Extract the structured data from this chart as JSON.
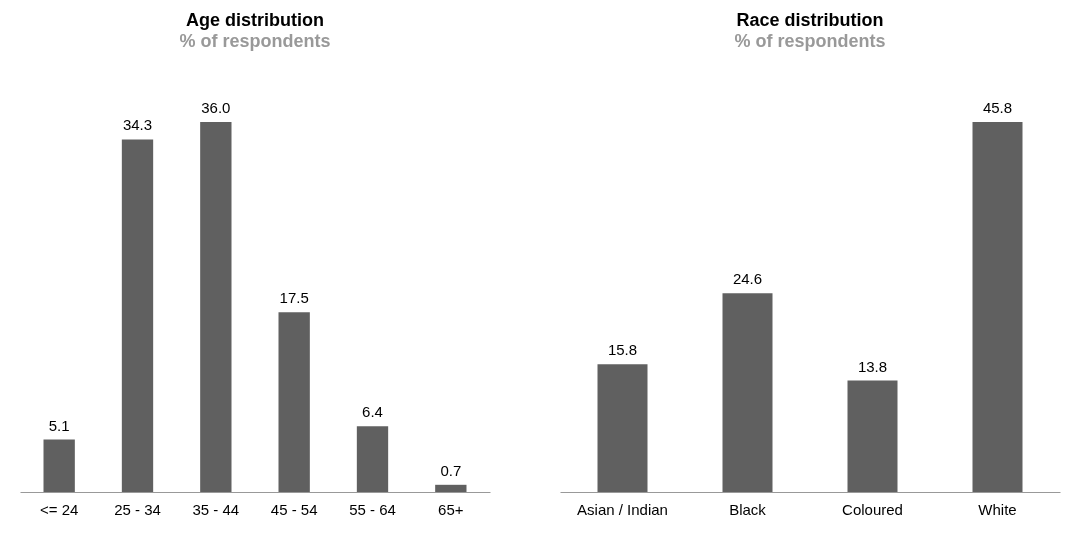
{
  "chart_data": [
    {
      "type": "bar",
      "title": "Age distribution",
      "subtitle": "% of respondents",
      "categories": [
        "<= 24",
        "25 - 34",
        "35 - 44",
        "45 - 54",
        "55 - 64",
        "65+"
      ],
      "values": [
        5.1,
        34.3,
        36.0,
        17.5,
        6.4,
        0.7
      ],
      "value_labels": [
        "5.1",
        "34.3",
        "36.0",
        "17.5",
        "6.4",
        "0.7"
      ],
      "color": "#606060"
    },
    {
      "type": "bar",
      "title": "Race distribution",
      "subtitle": "% of respondents",
      "categories": [
        "Asian / Indian",
        "Black",
        "Coloured",
        "White"
      ],
      "values": [
        15.8,
        24.6,
        13.8,
        45.8
      ],
      "value_labels": [
        "15.8",
        "24.6",
        "13.8",
        "45.8"
      ],
      "color": "#606060"
    }
  ]
}
